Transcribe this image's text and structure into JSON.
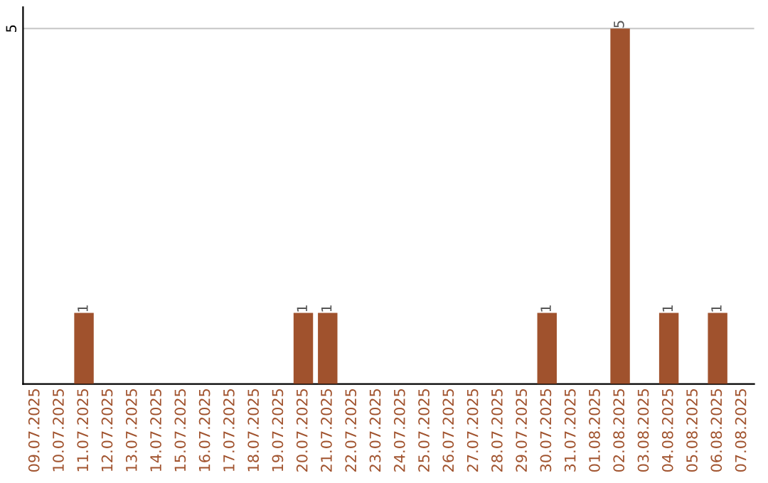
{
  "chart_data": {
    "type": "bar",
    "categories": [
      "09.07.2025",
      "10.07.2025",
      "11.07.2025",
      "12.07.2025",
      "13.07.2025",
      "14.07.2025",
      "15.07.2025",
      "16.07.2025",
      "17.07.2025",
      "18.07.2025",
      "19.07.2025",
      "20.07.2025",
      "21.07.2025",
      "22.07.2025",
      "23.07.2025",
      "24.07.2025",
      "25.07.2025",
      "26.07.2025",
      "27.07.2025",
      "28.07.2025",
      "29.07.2025",
      "30.07.2025",
      "31.07.2025",
      "01.08.2025",
      "02.08.2025",
      "03.08.2025",
      "04.08.2025",
      "05.08.2025",
      "06.08.2025",
      "07.08.2025"
    ],
    "values": [
      0,
      0,
      1,
      0,
      0,
      0,
      0,
      0,
      0,
      0,
      0,
      1,
      1,
      0,
      0,
      0,
      0,
      0,
      0,
      0,
      0,
      1,
      0,
      0,
      5,
      0,
      1,
      0,
      1,
      0
    ],
    "value_labels": [
      null,
      null,
      "1",
      null,
      null,
      null,
      null,
      null,
      null,
      null,
      null,
      "1",
      "1",
      null,
      null,
      null,
      null,
      null,
      null,
      null,
      null,
      "1",
      null,
      null,
      "5",
      null,
      "1",
      null,
      "1",
      null
    ],
    "color": "#a0522d",
    "ylim": [
      0,
      5.3
    ],
    "yticks": [
      5
    ],
    "grid": "y"
  }
}
